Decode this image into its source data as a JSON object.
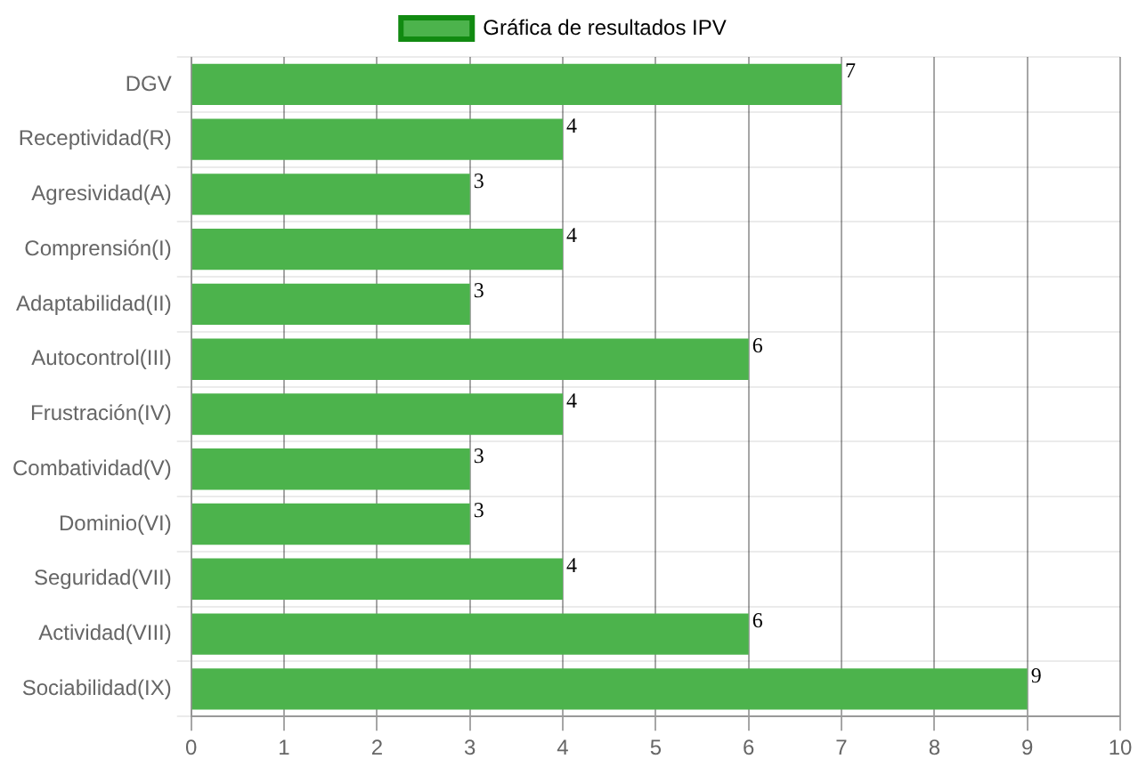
{
  "chart_data": {
    "type": "bar",
    "orientation": "horizontal",
    "categories": [
      "DGV",
      "Receptividad(R)",
      "Agresividad(A)",
      "Comprensión(I)",
      "Adaptabilidad(II)",
      "Autocontrol(III)",
      "Frustración(IV)",
      "Combatividad(V)",
      "Dominio(VI)",
      "Seguridad(VII)",
      "Actividad(VIII)",
      "Sociabilidad(IX)"
    ],
    "series": [
      {
        "name": "Gráfica de resultados IPV",
        "color": "#4cb34c",
        "values": [
          7,
          4,
          3,
          4,
          3,
          6,
          4,
          3,
          3,
          4,
          6,
          9
        ]
      }
    ],
    "xlim": [
      0,
      10
    ],
    "xticks": [
      0,
      1,
      2,
      3,
      4,
      5,
      6,
      7,
      8,
      9,
      10
    ],
    "grid": true,
    "legend": "top",
    "data_labels": true
  }
}
